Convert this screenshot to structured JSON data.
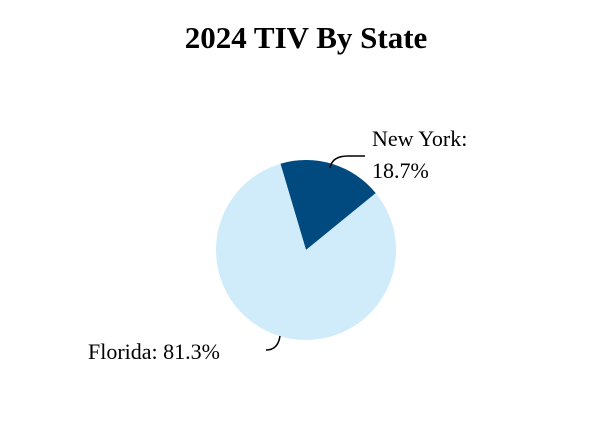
{
  "chart_data": {
    "type": "pie",
    "title": "2024 TIV By State",
    "categories": [
      "New York:",
      "Florida:"
    ],
    "values": [
      18.7,
      81.3
    ],
    "value_labels": [
      "18.7%",
      "81.3%"
    ],
    "colors": [
      "#004a80",
      "#d0ecfb"
    ]
  }
}
